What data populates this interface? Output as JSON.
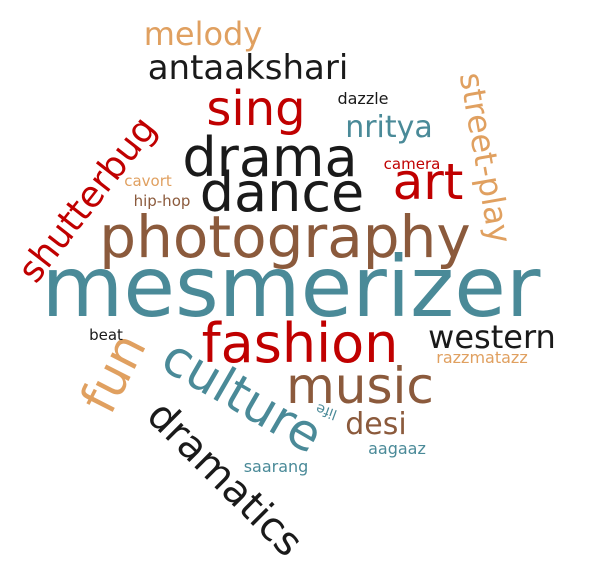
{
  "palette": {
    "red": "#c00000",
    "black": "#1a1a1a",
    "brown": "#8b5a3c",
    "teal": "#4a8a98",
    "orange": "#e0a060"
  },
  "words": [
    {
      "id": "mesmerizer",
      "text": "mesmerizer",
      "color": "teal",
      "rotate": 0
    },
    {
      "id": "photography",
      "text": "photography",
      "color": "brown",
      "rotate": 0
    },
    {
      "id": "drama",
      "text": "drama",
      "color": "black",
      "rotate": 0
    },
    {
      "id": "dance",
      "text": "dance",
      "color": "black",
      "rotate": 0
    },
    {
      "id": "fashion",
      "text": "fashion",
      "color": "red",
      "rotate": 0
    },
    {
      "id": "music",
      "text": "music",
      "color": "brown",
      "rotate": 0
    },
    {
      "id": "culture",
      "text": "culture",
      "color": "teal",
      "rotate": 30
    },
    {
      "id": "art",
      "text": "art",
      "color": "red",
      "rotate": 0
    },
    {
      "id": "sing",
      "text": "sing",
      "color": "red",
      "rotate": 0
    },
    {
      "id": "fun",
      "text": "fun",
      "color": "orange",
      "rotate": -63
    },
    {
      "id": "dramatics",
      "text": "dramatics",
      "color": "black",
      "rotate": 45
    },
    {
      "id": "shutterbug",
      "text": "shutterbug",
      "color": "red",
      "rotate": -52
    },
    {
      "id": "street-play",
      "text": "street-play",
      "color": "orange",
      "rotate": 80
    },
    {
      "id": "antaakshari",
      "text": "antaakshari",
      "color": "black",
      "rotate": 0
    },
    {
      "id": "melody",
      "text": "melody",
      "color": "orange",
      "rotate": 0
    },
    {
      "id": "western",
      "text": "western",
      "color": "black",
      "rotate": 0
    },
    {
      "id": "nritya",
      "text": "nritya",
      "color": "teal",
      "rotate": 0
    },
    {
      "id": "desi",
      "text": "desi",
      "color": "brown",
      "rotate": 0
    },
    {
      "id": "saarang",
      "text": "saarang",
      "color": "teal",
      "rotate": 0
    },
    {
      "id": "aagaaz",
      "text": "aagaaz",
      "color": "teal",
      "rotate": 0
    },
    {
      "id": "razzmatazz",
      "text": "razzmatazz",
      "color": "orange",
      "rotate": 0
    },
    {
      "id": "dazzle",
      "text": "dazzle",
      "color": "black",
      "rotate": 0
    },
    {
      "id": "camera",
      "text": "camera",
      "color": "red",
      "rotate": 0
    },
    {
      "id": "cavort",
      "text": "cavort",
      "color": "orange",
      "rotate": 0
    },
    {
      "id": "hip-hop",
      "text": "hip-hop",
      "color": "brown",
      "rotate": 0
    },
    {
      "id": "beat",
      "text": "beat",
      "color": "black",
      "rotate": 0
    },
    {
      "id": "life",
      "text": "life",
      "color": "teal",
      "rotate": 200
    }
  ]
}
